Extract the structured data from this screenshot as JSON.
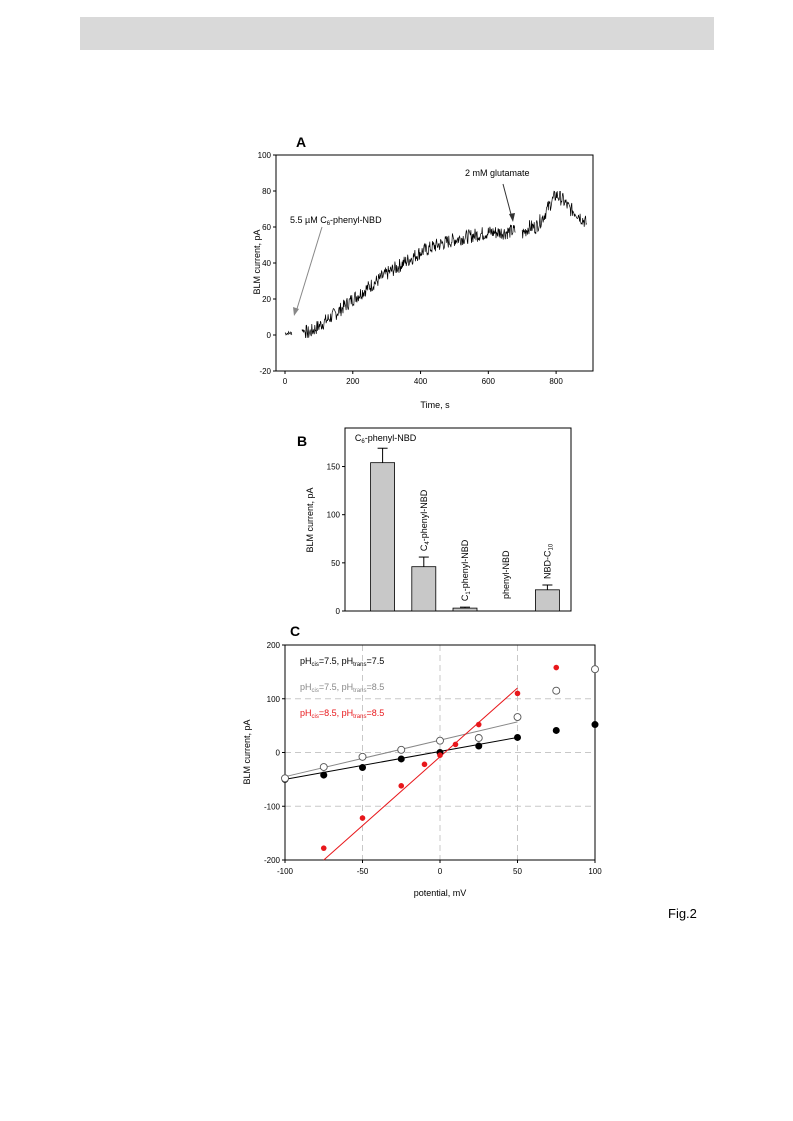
{
  "figure_label": "Fig.2",
  "chart_data": [
    {
      "panel": "A",
      "type": "line",
      "xlabel": "Time, s",
      "ylabel": "BLM current, pA",
      "xlim": [
        0,
        900
      ],
      "ylim": [
        -20,
        100
      ],
      "xticks": [
        "0",
        "200",
        "400",
        "600",
        "800"
      ],
      "yticks": [
        "-20",
        "0",
        "20",
        "40",
        "60",
        "80",
        "100"
      ],
      "annotations": [
        {
          "text_pre": "5.5 µM C",
          "sub": "6",
          "text_post": "-phenyl-NBD",
          "points_to": [
            30,
            10
          ]
        },
        {
          "text": "2 mM glutamate",
          "points_to": [
            690,
            62
          ]
        }
      ],
      "series": [
        {
          "x": [
            0,
            20,
            40,
            50,
            70,
            100,
            150,
            200,
            250,
            300,
            350,
            400,
            450,
            500,
            550,
            600,
            650,
            680,
            690,
            700,
            720,
            740,
            760,
            780,
            800,
            820,
            840,
            860,
            880,
            890
          ],
          "y": [
            1,
            1,
            null,
            3,
            1,
            5,
            12,
            20,
            27,
            34,
            40,
            46,
            50,
            53,
            55,
            57,
            57,
            58,
            null,
            56,
            60,
            60,
            65,
            72,
            78,
            75,
            70,
            68,
            64,
            62
          ]
        }
      ]
    },
    {
      "panel": "B",
      "type": "bar",
      "ylabel": "BLM current, pA",
      "ylim": [
        0,
        190
      ],
      "yticks": [
        "0",
        "50",
        "100",
        "150"
      ],
      "categories": [
        {
          "pre": "C",
          "sub": "6",
          "post": "-phenyl-NBD"
        },
        {
          "pre": "C",
          "sub": "4",
          "post": "-phenyl-NBD"
        },
        {
          "pre": "C",
          "sub": "1",
          "post": "-phenyl-NBD"
        },
        {
          "pre": "phenyl-NBD",
          "sub": "",
          "post": ""
        },
        {
          "pre": "NBD-C",
          "sub": "10",
          "post": ""
        }
      ],
      "values": [
        154,
        46,
        3,
        0,
        22
      ],
      "errors": [
        15,
        10,
        1,
        0,
        5
      ]
    },
    {
      "panel": "C",
      "type": "scatter",
      "xlabel": "potential, mV",
      "ylabel": "BLM current, pA",
      "xlim": [
        -100,
        100
      ],
      "ylim": [
        -200,
        200
      ],
      "xticks": [
        "-100",
        "-50",
        "0",
        "50",
        "100"
      ],
      "yticks": [
        "-200",
        "-100",
        "0",
        "100",
        "200"
      ],
      "grid": true,
      "series": [
        {
          "legend": {
            "a": "pH",
            "b": "cis",
            "c": "=7.5, pH",
            "d": "trans",
            "e": "=7.5"
          },
          "color": "#000000",
          "marker": "filled",
          "x": [
            -100,
            -75,
            -50,
            -25,
            0,
            25,
            50,
            75,
            100
          ],
          "y": [
            -50,
            -42,
            -28,
            -12,
            0,
            12,
            28,
            41,
            52
          ],
          "fit": [
            [
              -100,
              -50
            ],
            [
              50,
              28
            ]
          ]
        },
        {
          "legend": {
            "a": "pH",
            "b": "cis",
            "c": "=7.5, pH",
            "d": "trans",
            "e": "=8.5"
          },
          "color": "#888888",
          "marker": "open",
          "x": [
            -100,
            -75,
            -50,
            -25,
            0,
            25,
            50,
            75,
            100
          ],
          "y": [
            -48,
            -27,
            -8,
            5,
            22,
            27,
            66,
            115,
            155
          ],
          "fit": [
            [
              -100,
              -45
            ],
            [
              50,
              57
            ]
          ]
        },
        {
          "legend": {
            "a": "pH",
            "b": "cis",
            "c": "=8.5, pH",
            "d": "trans",
            "e": "=8.5"
          },
          "color": "#e8171b",
          "marker": "filled-small",
          "x": [
            -75,
            -50,
            -25,
            -10,
            0,
            10,
            25,
            50,
            75
          ],
          "y": [
            -178,
            -122,
            -62,
            -22,
            -5,
            15,
            52,
            110,
            158
          ],
          "fit": [
            [
              -75,
              -200
            ],
            [
              50,
              120
            ]
          ]
        }
      ]
    }
  ]
}
